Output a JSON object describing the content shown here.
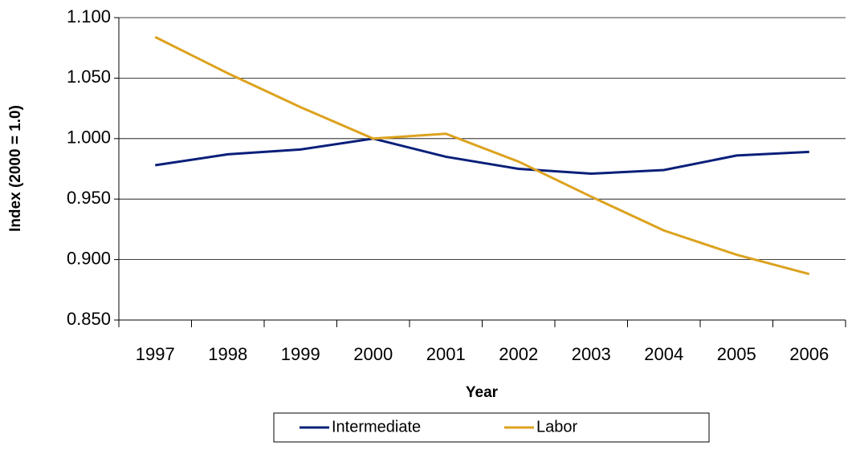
{
  "chart_data": {
    "type": "line",
    "x_label": "Year",
    "y_label": "Index (2000 = 1.0)",
    "categories": [
      "1997",
      "1998",
      "1999",
      "2000",
      "2001",
      "2002",
      "2003",
      "2004",
      "2005",
      "2006"
    ],
    "series": [
      {
        "name": "Intermediate",
        "color": "#0a1f7a",
        "values": [
          0.978,
          0.987,
          0.991,
          1.0,
          0.985,
          0.975,
          0.971,
          0.974,
          0.986,
          0.989
        ]
      },
      {
        "name": "Labor",
        "color": "#dca21e",
        "values": [
          1.084,
          1.054,
          1.026,
          1.0,
          1.004,
          0.981,
          0.952,
          0.924,
          0.904,
          0.888
        ]
      }
    ],
    "ylim": [
      0.85,
      1.1
    ],
    "yticks": [
      {
        "value": 0.85,
        "label": "0.850"
      },
      {
        "value": 0.9,
        "label": "0.900"
      },
      {
        "value": 0.95,
        "label": "0.950"
      },
      {
        "value": 1.0,
        "label": "1.000"
      },
      {
        "value": 1.05,
        "label": "1.050"
      },
      {
        "value": 1.1,
        "label": "1.100"
      }
    ],
    "grid": true,
    "legend": "bottom"
  }
}
